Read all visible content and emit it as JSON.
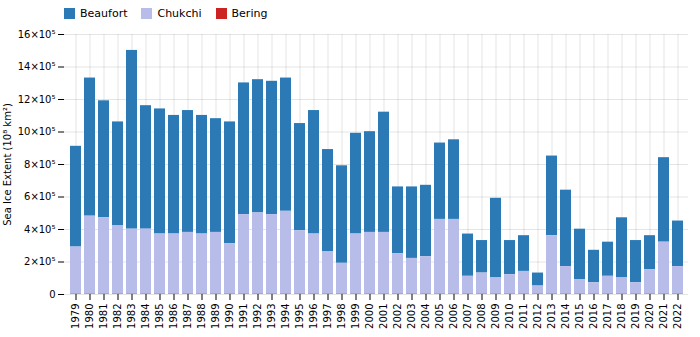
{
  "chart_data": {
    "type": "bar",
    "stacked": true,
    "categories": [
      1979,
      1980,
      1981,
      1982,
      1983,
      1984,
      1985,
      1986,
      1987,
      1988,
      1989,
      1990,
      1991,
      1992,
      1993,
      1994,
      1995,
      1996,
      1997,
      1998,
      1999,
      2000,
      2001,
      2002,
      2003,
      2004,
      2005,
      2006,
      2007,
      2008,
      2009,
      2010,
      2011,
      2012,
      2013,
      2014,
      2015,
      2016,
      2017,
      2018,
      2019,
      2020,
      2021,
      2022
    ],
    "series": [
      {
        "name": "Beaufort",
        "color": "#2b7ab5",
        "values": [
          620000,
          850000,
          720000,
          640000,
          1100000,
          760000,
          770000,
          730000,
          750000,
          730000,
          700000,
          750000,
          810000,
          820000,
          820000,
          820000,
          660000,
          760000,
          630000,
          600000,
          620000,
          620000,
          740000,
          410000,
          440000,
          440000,
          470000,
          490000,
          260000,
          200000,
          490000,
          210000,
          220000,
          80000,
          490000,
          470000,
          310000,
          200000,
          210000,
          370000,
          260000,
          210000,
          520000,
          280000
        ]
      },
      {
        "name": "Chukchi",
        "color": "#b8bce8",
        "values": [
          290000,
          480000,
          470000,
          420000,
          400000,
          400000,
          370000,
          370000,
          380000,
          370000,
          380000,
          310000,
          490000,
          500000,
          490000,
          510000,
          390000,
          370000,
          260000,
          190000,
          370000,
          380000,
          380000,
          250000,
          220000,
          230000,
          460000,
          460000,
          110000,
          130000,
          100000,
          120000,
          140000,
          50000,
          360000,
          170000,
          90000,
          70000,
          110000,
          100000,
          70000,
          150000,
          320000,
          170000
        ]
      },
      {
        "name": "Bering",
        "color": "#cc2222",
        "values": [
          2000,
          2000,
          2000,
          2000,
          2000,
          2000,
          2000,
          2000,
          2000,
          2000,
          2000,
          2000,
          2000,
          2000,
          2000,
          2000,
          2000,
          2000,
          2000,
          2000,
          2000,
          2000,
          2000,
          2000,
          2000,
          2000,
          2000,
          2000,
          2000,
          2000,
          2000,
          2000,
          2000,
          2000,
          2000,
          2000,
          2000,
          2000,
          2000,
          2000,
          2000,
          2000,
          2000,
          2000
        ]
      }
    ],
    "ylabel": "Sea Ice Extent (10⁸ km²)",
    "ylim": [
      0,
      1600000
    ],
    "yticks": [
      0,
      {
        "value": 200000,
        "label": "2×10⁵"
      },
      {
        "value": 400000,
        "label": "4×10⁵"
      },
      {
        "value": 600000,
        "label": "6×10⁵"
      },
      {
        "value": 800000,
        "label": "8×10⁵"
      },
      {
        "value": 1000000,
        "label": "10×10⁵"
      },
      {
        "value": 1200000,
        "label": "12×10⁵"
      },
      {
        "value": 1400000,
        "label": "14×10⁵"
      },
      {
        "value": 1600000,
        "label": "16×10⁵"
      }
    ],
    "grid": true,
    "legend": "upper left"
  }
}
